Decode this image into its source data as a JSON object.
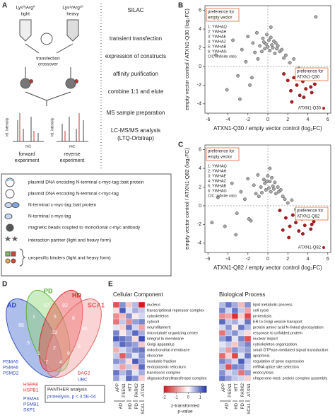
{
  "panel_a": {
    "label": "A",
    "light": "Lys⁰/Arg⁰",
    "light_name": "light",
    "heavy": "Lys⁸/Arg¹⁰",
    "heavy_name": "heavy",
    "transfection": "transfection",
    "crossover": "crossover",
    "y_axis": "rel. intensity",
    "x_axis": "m/z",
    "forward": [
      "forward",
      "experiment"
    ],
    "reverse": [
      "reverse",
      "experiment"
    ],
    "steps": [
      "SILAC",
      "transient transfection",
      "expression of constructs",
      "affinity purification",
      "combine 1:1 and elute",
      "MS sample preparation",
      "LC-MS/MS analysis",
      "(LTQ-Orbitrap)"
    ],
    "legend": [
      "plasmid DNA encoding N-terminal c-myc-tag::bait protein",
      "plasmid DNA encoding N-terminal c-myc-tag",
      "N-terminal c-myc-tag::bait protein",
      "N-terminal c-myc-tag",
      "magnetic beads coupled to monoclonal c-myc antibody",
      "interaction partner (light and heavy form)",
      "unspecific binders (light and heavy form)"
    ]
  },
  "chart_data": [
    {
      "type": "scatter",
      "panel": "B",
      "xlabel": "ATXN1-Q30 / empty vector control (log₂FC)",
      "ylabel": "empty vector control / ATXN1-Q30 (log₂FC)",
      "xlim": [
        -6.3,
        6.3
      ],
      "xticks": [
        -6,
        -4,
        -2,
        0,
        2,
        4,
        6
      ],
      "ylim": [
        -5,
        6.5
      ],
      "yticks": [
        -4,
        -2,
        0,
        2,
        4,
        6
      ],
      "note_empty": [
        "preference for",
        "empty vector"
      ],
      "note_bait": [
        "preference for",
        "ATXN1-Q30"
      ],
      "key": [
        "1: YWHAQ",
        "2: YWHAH",
        "3: YWHAE",
        "4: YWHAZ",
        "5: YWHAB",
        "6: YWHAG",
        "CIC: infinite ratio"
      ],
      "bait_label": "ATXN1-Q30",
      "series": [
        {
          "color": "#a8a8a8",
          "x": [
            -5.2,
            -4.1,
            -3.5,
            -3,
            -2.6,
            -2.2,
            -2,
            -1.8,
            -1.5,
            -1.3,
            -1.1,
            -1,
            -0.8,
            -0.6,
            -0.5,
            -0.4,
            -0.3,
            -0.2,
            -0.1,
            0,
            0.1,
            0.2,
            0.3,
            0.4,
            0.5,
            0.6,
            0.7,
            0.8,
            0.9,
            1,
            1.2,
            1.4,
            1.6,
            1.8,
            2.2,
            2.6,
            3.1,
            -2.8,
            -1.6,
            0.3,
            4.8
          ],
          "values": [
            1.2,
            -2.5,
            2.8,
            -1,
            1.8,
            0.5,
            3.2,
            -2,
            2.5,
            1.5,
            3.6,
            0.8,
            2.2,
            1.6,
            3,
            2.6,
            1.9,
            2.4,
            3.4,
            2.1,
            2.8,
            1.7,
            3.1,
            2.3,
            2,
            2.7,
            1.4,
            2.5,
            1.9,
            2.2,
            1.6,
            1.8,
            0.9,
            1.2,
            0.4,
            0.8,
            -0.2,
            -3.5,
            -1.2,
            4.2,
            5.3
          ]
        },
        {
          "color": "#b01c22",
          "x": [
            1.6,
            2,
            2.3,
            2.6,
            2.9,
            3.2,
            3.5,
            3.8,
            4.1,
            4.4,
            4.7,
            2.4,
            3,
            3.6,
            4.3
          ],
          "values": [
            -0.8,
            -1.5,
            -2.6,
            -1.2,
            -2,
            -3.1,
            -1.6,
            -2.4,
            -1.1,
            -2.8,
            -1.9,
            -3.8,
            -0.6,
            -3.3,
            -2.2
          ]
        }
      ]
    },
    {
      "type": "scatter",
      "panel": "C",
      "xlabel": "ATXN1-Q82 / empty vector control (log₂FC)",
      "ylabel": "empty vector control / ATXN1-Q82 (log₂FC)",
      "xlim": [
        -6.3,
        6.3
      ],
      "xticks": [
        -6,
        -4,
        -2,
        0,
        2,
        4,
        6
      ],
      "ylim": [
        -5,
        6.5
      ],
      "yticks": [
        -4,
        -2,
        0,
        2,
        4,
        6
      ],
      "note_empty": [
        "preference for",
        "empty vector"
      ],
      "note_bait": [
        "preference for",
        "ATXN1-Q82"
      ],
      "key": [
        "1: YWHAQ",
        "2: YWHAH",
        "3: YWHAE",
        "4: YWHAZ",
        "5: YWHAB",
        "6: YWHAG",
        "CIC: infinite ratio"
      ],
      "bait_label": "ATXN1-Q82",
      "series": [
        {
          "color": "#a8a8a8",
          "x": [
            -5,
            -4.3,
            -3.6,
            -3.1,
            -2.7,
            -2.3,
            -2,
            -1.7,
            -1.4,
            -1.2,
            -1,
            -0.9,
            -0.7,
            -0.6,
            -0.4,
            -0.3,
            -0.2,
            -0.1,
            0,
            0.1,
            0.2,
            0.3,
            0.4,
            0.5,
            0.6,
            0.7,
            0.8,
            1,
            1.1,
            1.3,
            1.5,
            1.7,
            2,
            2.4,
            2.8,
            3.3,
            -3.2,
            -1.9,
            0.2,
            -5.6
          ],
          "values": [
            0.9,
            -2.2,
            2.4,
            -0.8,
            1.5,
            0.7,
            2.9,
            -1.6,
            2.2,
            1.3,
            3.3,
            1,
            2,
            1.4,
            2.8,
            2.4,
            1.7,
            2.6,
            3.2,
            1.9,
            2.6,
            1.5,
            3,
            2.1,
            1.8,
            2.5,
            1.3,
            2,
            1.5,
            1.7,
            1,
            0.7,
            0.3,
            0.6,
            -0.4,
            -0.8,
            -3.1,
            -1.4,
            4,
            -1.8
          ]
        },
        {
          "color": "#b01c22",
          "x": [
            1.2,
            1.8,
            2.2,
            2.5,
            2.8,
            3.1,
            3.4,
            3.7,
            4,
            4.3,
            4.6,
            2.1,
            2.9,
            3.5,
            4.4,
            1.5
          ],
          "values": [
            -0.5,
            -1.3,
            -2.2,
            -1,
            -1.8,
            -2.7,
            -1.4,
            -2.1,
            -1,
            -2.5,
            -1.7,
            -3.4,
            -0.4,
            -3,
            -2,
            -2.6
          ]
        }
      ]
    }
  ],
  "panel_d": {
    "label": "D",
    "sets": [
      {
        "name": "AD",
        "color": "#2a46b8"
      },
      {
        "name": "PD",
        "color": "#4caf2a"
      },
      {
        "name": "HD",
        "color": "#d42424"
      },
      {
        "name": "SCA1",
        "color": "#e25a5a"
      }
    ],
    "regions": [
      88,
      67,
      82,
      46,
      1,
      5,
      6,
      3,
      19,
      6,
      1,
      9,
      7,
      4,
      2
    ],
    "genes": [
      {
        "name": "PSMA5",
        "color": "#2a46b8"
      },
      {
        "name": "PSMA6",
        "color": "#2a46b8"
      },
      {
        "name": "PSMD2",
        "color": "#2a46b8"
      },
      {
        "name": "HSPA8",
        "color": "#d42424"
      },
      {
        "name": "HSPB1",
        "color": "#d42424"
      },
      {
        "name": "PSMA4",
        "color": "#2a46b8"
      },
      {
        "name": "PSMB1",
        "color": "#2a46b8"
      },
      {
        "name": "SKP1",
        "color": "#2a46b8"
      },
      {
        "name": "BAG2",
        "color": "#d42424"
      },
      {
        "name": "UBC",
        "color": "#2a46b8"
      }
    ],
    "panther": "PANTHER analysis",
    "panther_result": "proteolysis, p < 3.5E-04"
  },
  "panel_e": {
    "label": "E",
    "columns": [
      "APP",
      "PSEN1",
      "HTT",
      "PARK2",
      "ATXN1"
    ],
    "groups": [
      {
        "name": "AD",
        "span": 2
      },
      {
        "name": "HD",
        "span": 1
      },
      {
        "name": "PD",
        "span": 1
      },
      {
        "name": "SCA1",
        "span": 1
      }
    ],
    "clim": [
      -2,
      1.5
    ],
    "colorbar_ticks": [
      -2,
      -1,
      0,
      1
    ],
    "colorbar_label": [
      "z-transformed",
      "p-value"
    ],
    "heatmaps": [
      {
        "title": "Cellular Component",
        "rows": [
          "nucleus",
          "transcriptional repressor complex",
          "cytoskeleton",
          "cytosol",
          "neurofilament",
          "microtubule organizing center",
          "integral to membrane",
          "Golgi apparatus",
          "mitochondrial membrane",
          "ribosome",
          "insoluble fraction",
          "endoplasmic reticulum",
          "translocon complex",
          "oligosaccharyltransferase complex"
        ],
        "values": [
          [
            -1.5,
            0.8,
            -0.5,
            0.5,
            -2
          ],
          [
            -0.3,
            1.2,
            0.2,
            0.6,
            0.4
          ],
          [
            -1,
            -0.6,
            0.8,
            -0.2,
            0.3
          ],
          [
            -1.2,
            0.4,
            -1,
            0.7,
            0.9
          ],
          [
            0.2,
            -0.4,
            1,
            0.3,
            -0.8
          ],
          [
            0.9,
            -0.2,
            0.5,
            1.1,
            0.6
          ],
          [
            1.2,
            1,
            0.8,
            -0.3,
            1.3
          ],
          [
            0.5,
            1.1,
            0.9,
            0.7,
            -0.5
          ],
          [
            -0.7,
            0.3,
            0.6,
            0.9,
            1
          ],
          [
            0.4,
            -1.4,
            0.7,
            0.2,
            0.8
          ],
          [
            0.8,
            0.6,
            -0.3,
            1.2,
            0.7
          ],
          [
            0.3,
            -0.8,
            0.4,
            -0.5,
            1.1
          ],
          [
            1,
            0.5,
            0.9,
            0.2,
            0.6
          ],
          [
            0.7,
            0.2,
            1.1,
            0.8,
            -0.4
          ]
        ]
      },
      {
        "title": "Biological Process",
        "rows": [
          "lipid metabolic process",
          "cell cycle",
          "proteolysis",
          "ER to Golgi vesicle transport",
          "protein amino acid N-linked glycosylation",
          "response to unfolded protein",
          "nuclear import",
          "cytoskeleton organization",
          "small GTPase-mediated signal transduction",
          "apoptosis",
          "regulation of gene expression",
          "mRNA splice site selection",
          "endocytosis",
          "chaperone-med. protein complex assembly"
        ],
        "values": [
          [
            0.5,
            1,
            0.6,
            -0.6,
            0.8
          ],
          [
            0.9,
            0.3,
            1,
            0.4,
            -0.8
          ],
          [
            -1,
            -0.8,
            -1.8,
            -0.4,
            -1.6
          ],
          [
            1.1,
            0.4,
            0.6,
            0.2,
            1
          ],
          [
            0.3,
            0.8,
            -0.2,
            1,
            0.5
          ],
          [
            -1.2,
            0.5,
            0.8,
            0.3,
            -0.3
          ],
          [
            0.7,
            1.1,
            0.2,
            0.9,
            -1.5
          ],
          [
            0.2,
            0.4,
            -0.5,
            0.6,
            0.9
          ],
          [
            0.4,
            -0.9,
            0.8,
            0.5,
            0.7
          ],
          [
            -1.3,
            -0.4,
            -1.6,
            0.2,
            1
          ],
          [
            0.9,
            0.6,
            0.3,
            1.2,
            0.4
          ],
          [
            0.5,
            -1.5,
            0.9,
            0.8,
            0.3
          ],
          [
            0.8,
            0.3,
            0.5,
            -1.2,
            0.7
          ],
          [
            1,
            0.7,
            0.4,
            0.3,
            -0.4
          ]
        ]
      }
    ]
  }
}
